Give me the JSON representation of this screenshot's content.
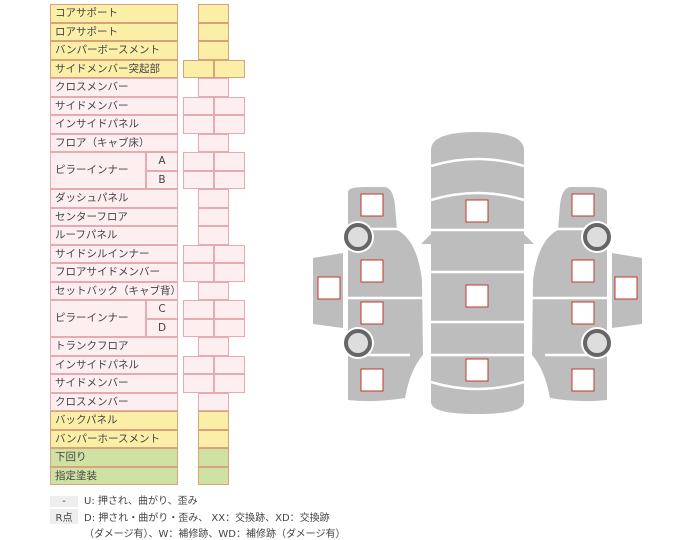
{
  "rows": [
    {
      "label": "コアサポート",
      "color": "yellow",
      "cells": 1
    },
    {
      "label": "ロアサポート",
      "color": "yellow",
      "cells": 1
    },
    {
      "label": "バンパーボースメント",
      "color": "yellow",
      "cells": 1
    },
    {
      "label": "サイドメンバー突起部",
      "color": "yellow",
      "cells": 2
    },
    {
      "label": "クロスメンバー",
      "color": "pink",
      "cells": 1
    },
    {
      "label": "サイドメンバー",
      "color": "pink",
      "cells": 2
    },
    {
      "label": "インサイドパネル",
      "color": "pink",
      "cells": 2
    },
    {
      "label": "フロア（キャブ床）",
      "color": "pink",
      "cells": 1
    },
    {
      "label": "ピラーインナー",
      "sub": "A",
      "color": "pink",
      "cells": 2
    },
    {
      "label": "",
      "sub": "B",
      "color": "pink",
      "cells": 2
    },
    {
      "label": "ダッシュパネル",
      "color": "pink",
      "cells": 1
    },
    {
      "label": "センターフロア",
      "color": "pink",
      "cells": 1
    },
    {
      "label": "ルーフパネル",
      "color": "pink",
      "cells": 1
    },
    {
      "label": "サイドシルインナー",
      "color": "pink",
      "cells": 2
    },
    {
      "label": "フロアサイドメンバー",
      "color": "pink",
      "cells": 2
    },
    {
      "label": "セットバック（キャブ背）",
      "color": "pink",
      "cells": 1
    },
    {
      "label": "ピラーインナー",
      "sub": "C",
      "color": "pink",
      "cells": 2
    },
    {
      "label": "",
      "sub": "D",
      "color": "pink",
      "cells": 2
    },
    {
      "label": "トランクフロア",
      "color": "pink",
      "cells": 1
    },
    {
      "label": "インサイドパネル",
      "color": "pink",
      "cells": 2
    },
    {
      "label": "サイドメンバー",
      "color": "pink",
      "cells": 2
    },
    {
      "label": "クロスメンバー",
      "color": "pink",
      "cells": 1
    },
    {
      "label": "バックパネル",
      "color": "yellow",
      "cells": 1
    },
    {
      "label": "バンパーホースメント",
      "color": "yellow",
      "cells": 1
    },
    {
      "label": "下回り",
      "color": "green",
      "cells": 1
    },
    {
      "label": "指定塗装",
      "color": "green",
      "cells": 1
    }
  ],
  "legend": [
    {
      "key": "-",
      "text": "U: 押され、曲がり、歪み"
    },
    {
      "key": "R点",
      "text": "D: 押され・曲がり・歪み、 XX：交換跡、XD：交換跡",
      "text2": "（ダメージ有）、W：補修跡、WD：補修跡（ダメージ有）"
    }
  ],
  "colors": {
    "yellow": "#fbefa8",
    "pink": "#fdeef0",
    "green": "#cfe1a3",
    "car": "#bdbdbd",
    "box_border": "#c0392b"
  }
}
